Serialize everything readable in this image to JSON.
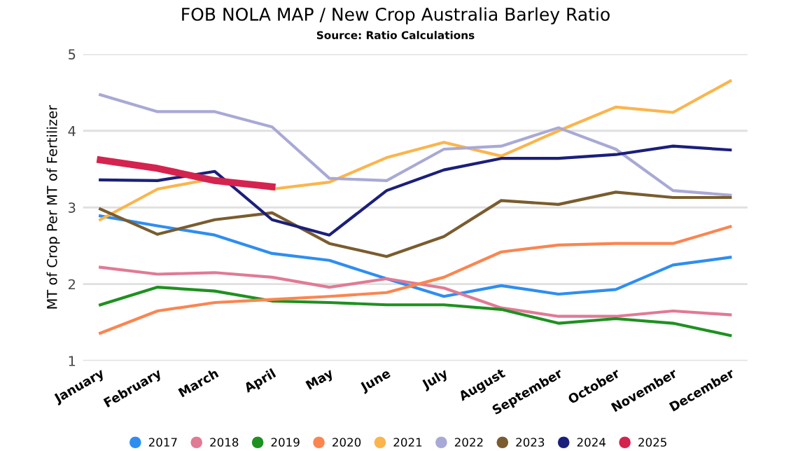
{
  "chart_data": {
    "type": "line",
    "title": "FOB NOLA MAP / New Crop Australia Barley Ratio",
    "subtitle": "Source: Ratio Calculations",
    "ylabel": "MT of Crop Per MT of Fertilizer",
    "categories": [
      "January",
      "February",
      "March",
      "April",
      "May",
      "June",
      "July",
      "August",
      "September",
      "October",
      "November",
      "December"
    ],
    "ylim": [
      1,
      5
    ],
    "yticks": [
      1,
      2,
      3,
      4,
      5
    ],
    "grid": "y",
    "legend": "bottom",
    "marker": "none",
    "line_style": "solid",
    "series": [
      {
        "name": "2017",
        "color": "#2e8ef0",
        "values": [
          2.89,
          2.76,
          2.64,
          2.4,
          2.31,
          2.07,
          1.84,
          1.98,
          1.87,
          1.93,
          2.25,
          2.35
        ]
      },
      {
        "name": "2018",
        "color": "#e07a95",
        "values": [
          2.22,
          2.13,
          2.15,
          2.09,
          1.96,
          2.07,
          1.95,
          1.69,
          1.58,
          1.58,
          1.65,
          1.6
        ]
      },
      {
        "name": "2019",
        "color": "#1e9120",
        "values": [
          1.73,
          1.96,
          1.91,
          1.78,
          1.76,
          1.73,
          1.73,
          1.67,
          1.49,
          1.55,
          1.49,
          1.33
        ]
      },
      {
        "name": "2020",
        "color": "#fb8550",
        "values": [
          1.36,
          1.65,
          1.76,
          1.8,
          1.84,
          1.89,
          2.09,
          2.42,
          2.51,
          2.53,
          2.53,
          2.75
        ]
      },
      {
        "name": "2021",
        "color": "#fbb54c",
        "values": [
          2.84,
          3.24,
          3.38,
          3.24,
          3.33,
          3.65,
          3.85,
          3.67,
          4.0,
          4.31,
          4.24,
          4.65
        ]
      },
      {
        "name": "2022",
        "color": "#a9a9d6",
        "values": [
          4.47,
          4.25,
          4.25,
          4.05,
          3.38,
          3.35,
          3.76,
          3.8,
          4.04,
          3.76,
          3.22,
          3.16
        ]
      },
      {
        "name": "2023",
        "color": "#7a5c2e",
        "values": [
          2.98,
          2.65,
          2.84,
          2.93,
          2.53,
          2.36,
          2.62,
          3.09,
          3.04,
          3.2,
          3.13,
          3.13
        ]
      },
      {
        "name": "2024",
        "color": "#1b1f7a",
        "values": [
          3.36,
          3.35,
          3.47,
          2.84,
          2.64,
          3.22,
          3.49,
          3.64,
          3.64,
          3.69,
          3.8,
          3.75
        ]
      },
      {
        "name": "2025",
        "color": "#d4234f",
        "values": [
          3.62,
          3.51,
          3.35,
          3.27,
          null,
          null,
          null,
          null,
          null,
          null,
          null,
          null
        ]
      }
    ]
  }
}
